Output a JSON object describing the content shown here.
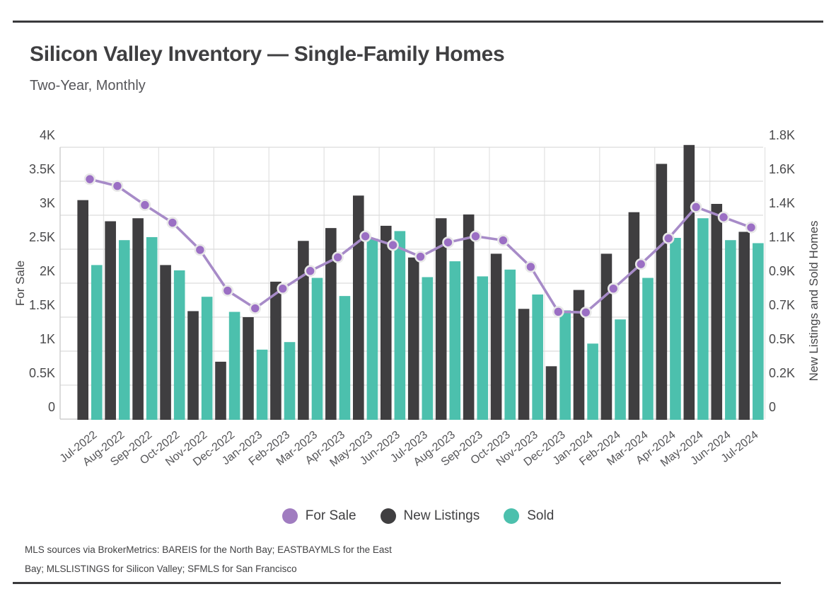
{
  "page": {
    "title": "Silicon Valley Inventory — Single-Family Homes",
    "subtitle": "Two-Year, Monthly",
    "source_note": [
      "MLS sources via BrokerMetrics: BAREIS for the North Bay; EASTBAYMLS for the East",
      "Bay; MLSLISTINGS for Silicon Valley; SFMLS for San Francisco"
    ]
  },
  "colors": {
    "for_sale_line": "#a78bc8",
    "for_sale_dot": "#9b6fc4",
    "for_sale_dot_ring": "#e8e8e8",
    "new_listings_bar": "#3f3e40",
    "sold_bar": "#4cc0ad",
    "gridline": "#dcdcdc",
    "vertical_gridline": "#e4e4e4",
    "axis_line": "#c9c9c9",
    "tick_text": "#4a4a4c",
    "axis_title_text": "#454547",
    "x_label_text": "#555558",
    "rule": "#3a3a3c"
  },
  "legend": {
    "items": [
      {
        "label": "For Sale",
        "color": "#a07cc0"
      },
      {
        "label": "New Listings",
        "color": "#403f41"
      },
      {
        "label": "Sold",
        "color": "#4cc0ad"
      }
    ]
  },
  "chart_data": {
    "type": "bar",
    "subtype": "dual-axis combo: line (For Sale, left axis) + grouped bars (New Listings & Sold, right axis)",
    "title": "Silicon Valley Inventory — Single-Family Homes",
    "subtitle": "Two-Year, Monthly",
    "grid": true,
    "legend_position": "bottom",
    "categories": [
      "Jul-2022",
      "Aug-2022",
      "Sep-2022",
      "Oct-2022",
      "Nov-2022",
      "Dec-2022",
      "Jan-2023",
      "Feb-2023",
      "Mar-2023",
      "Apr-2023",
      "May-2023",
      "Jun-2023",
      "Jul-2023",
      "Aug-2023",
      "Sep-2023",
      "Oct-2023",
      "Nov-2023",
      "Dec-2023",
      "Jan-2024",
      "Feb-2024",
      "Mar-2024",
      "Apr-2024",
      "May-2024",
      "Jun-2024",
      "Jul-2024"
    ],
    "series": [
      {
        "name": "For Sale",
        "type": "line",
        "axis": "left",
        "color": "#a78bc8",
        "values": [
          3530,
          3430,
          3150,
          2890,
          2490,
          1890,
          1630,
          1920,
          2180,
          2380,
          2690,
          2560,
          2390,
          2600,
          2690,
          2630,
          2240,
          1580,
          1570,
          1920,
          2280,
          2660,
          3120,
          2970,
          2820
        ]
      },
      {
        "name": "New Listings",
        "type": "bar",
        "axis": "right",
        "color": "#3f3e40",
        "values": [
          1450,
          1310,
          1330,
          1020,
          715,
          380,
          675,
          910,
          1180,
          1265,
          1480,
          1280,
          1070,
          1330,
          1355,
          1095,
          730,
          350,
          855,
          1095,
          1370,
          1690,
          1815,
          1425,
          1240
        ]
      },
      {
        "name": "Sold",
        "type": "bar",
        "axis": "right",
        "color": "#4cc0ad",
        "values": [
          1020,
          1185,
          1205,
          985,
          810,
          710,
          460,
          510,
          935,
          815,
          1195,
          1245,
          940,
          1045,
          945,
          990,
          825,
          720,
          500,
          660,
          935,
          1200,
          1330,
          1185,
          1165
        ]
      }
    ],
    "left_axis": {
      "title": "For Sale",
      "min": 0,
      "max": 4000,
      "tick_values": [
        0,
        500,
        1000,
        1500,
        2000,
        2500,
        3000,
        3500,
        4000
      ],
      "tick_labels": [
        "0",
        "0.5K",
        "1K",
        "1.5K",
        "2K",
        "2.5K",
        "3K",
        "3.5K",
        "4K"
      ]
    },
    "right_axis": {
      "title": "New Listings and Sold Homes",
      "min": 0,
      "max": 1800,
      "tick_values": [
        0,
        225,
        450,
        675,
        900,
        1125,
        1350,
        1575,
        1800
      ],
      "tick_labels": [
        "0",
        "0.2K",
        "0.5K",
        "0.7K",
        "0.9K",
        "1.1K",
        "1.4K",
        "1.6K",
        "1.8K"
      ]
    }
  }
}
